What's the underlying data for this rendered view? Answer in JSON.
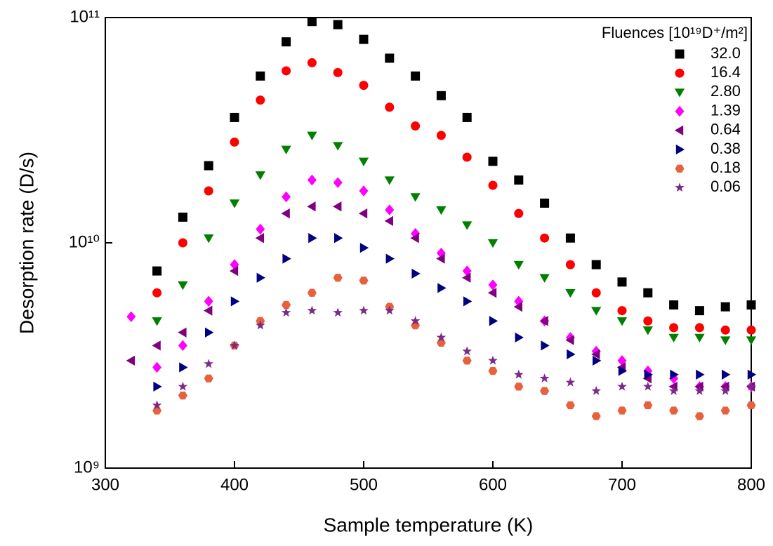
{
  "chart_data": {
    "type": "scatter",
    "xlabel": "Sample temperature (K)",
    "ylabel": "Desorption rate (D/s)",
    "legend_title": "Fluences [10¹⁹D⁺/m²]",
    "legend": "upper right",
    "log_y": true,
    "xlim": [
      300,
      800
    ],
    "xticks": [
      300,
      400,
      500,
      600,
      700,
      800
    ],
    "ylim": [
      1000000000.0,
      100000000000.0
    ],
    "yticks": [
      {
        "value": 1000000000.0,
        "label": "10⁹"
      },
      {
        "value": 10000000000.0,
        "label": "10¹⁰"
      },
      {
        "value": 100000000000.0,
        "label": "10¹¹"
      }
    ],
    "x": [
      320,
      340,
      360,
      380,
      400,
      420,
      440,
      460,
      480,
      500,
      520,
      540,
      560,
      580,
      600,
      620,
      640,
      660,
      680,
      700,
      720,
      740,
      760,
      780,
      800
    ],
    "series": [
      {
        "name": "32.0",
        "color": "#000000",
        "marker": "square",
        "values": [
          null,
          7500000000.0,
          13000000000.0,
          22000000000.0,
          36000000000.0,
          55000000000.0,
          78000000000.0,
          96000000000.0,
          93000000000.0,
          80000000000.0,
          66000000000.0,
          55000000000.0,
          45000000000.0,
          36000000000.0,
          23000000000.0,
          19000000000.0,
          15000000000.0,
          10500000000.0,
          8000000000.0,
          6700000000.0,
          6000000000.0,
          5300000000.0,
          5000000000.0,
          5200000000.0,
          5300000000.0
        ]
      },
      {
        "name": "16.4",
        "color": "#ff0000",
        "marker": "circle",
        "values": [
          null,
          6000000000.0,
          10000000000.0,
          17000000000.0,
          28000000000.0,
          43000000000.0,
          58000000000.0,
          63000000000.0,
          57000000000.0,
          50000000000.0,
          40000000000.0,
          33000000000.0,
          30000000000.0,
          24000000000.0,
          18000000000.0,
          13500000000.0,
          10500000000.0,
          8000000000.0,
          6000000000.0,
          5000000000.0,
          4500000000.0,
          4200000000.0,
          4200000000.0,
          4100000000.0,
          4100000000.0
        ]
      },
      {
        "name": "2.80",
        "color": "#008000",
        "marker": "triangle-down",
        "values": [
          null,
          4500000000.0,
          6500000000.0,
          10500000000.0,
          15000000000.0,
          20000000000.0,
          26000000000.0,
          30000000000.0,
          27000000000.0,
          23000000000.0,
          19000000000.0,
          16000000000.0,
          14000000000.0,
          12000000000.0,
          10000000000.0,
          8000000000.0,
          7000000000.0,
          6000000000.0,
          5000000000.0,
          4500000000.0,
          4100000000.0,
          3800000000.0,
          3800000000.0,
          3700000000.0,
          3700000000.0
        ]
      },
      {
        "name": "1.39",
        "color": "#ff00ff",
        "marker": "diamond",
        "values": [
          4700000000.0,
          2800000000.0,
          3500000000.0,
          5500000000.0,
          8000000000.0,
          11500000000.0,
          16000000000.0,
          19000000000.0,
          18500000000.0,
          17000000000.0,
          14000000000.0,
          11000000000.0,
          9000000000.0,
          7500000000.0,
          6500000000.0,
          5500000000.0,
          4500000000.0,
          3800000000.0,
          3300000000.0,
          3000000000.0,
          2700000000.0,
          2500000000.0,
          2300000000.0,
          2300000000.0,
          2300000000.0
        ]
      },
      {
        "name": "0.64",
        "color": "#800080",
        "marker": "triangle-left",
        "values": [
          3000000000.0,
          3500000000.0,
          4000000000.0,
          5000000000.0,
          7500000000.0,
          10500000000.0,
          13500000000.0,
          14500000000.0,
          14500000000.0,
          13500000000.0,
          12500000000.0,
          10500000000.0,
          8500000000.0,
          7000000000.0,
          6000000000.0,
          5200000000.0,
          4500000000.0,
          3700000000.0,
          3200000000.0,
          2800000000.0,
          2500000000.0,
          2300000000.0,
          2300000000.0,
          2300000000.0,
          2300000000.0
        ]
      },
      {
        "name": "0.38",
        "color": "#000080",
        "marker": "triangle-right",
        "values": [
          null,
          2300000000.0,
          2800000000.0,
          4000000000.0,
          5500000000.0,
          7000000000.0,
          8500000000.0,
          10500000000.0,
          10500000000.0,
          9500000000.0,
          8500000000.0,
          7300000000.0,
          6300000000.0,
          5500000000.0,
          4500000000.0,
          3800000000.0,
          3500000000.0,
          3200000000.0,
          3000000000.0,
          2700000000.0,
          2600000000.0,
          2600000000.0,
          2600000000.0,
          2600000000.0,
          2600000000.0
        ]
      },
      {
        "name": "0.18",
        "color": "#e8603c",
        "marker": "hexagon",
        "values": [
          null,
          1800000000.0,
          2100000000.0,
          2500000000.0,
          3500000000.0,
          4500000000.0,
          5300000000.0,
          6000000000.0,
          7000000000.0,
          6800000000.0,
          5200000000.0,
          4300000000.0,
          3600000000.0,
          3000000000.0,
          2700000000.0,
          2300000000.0,
          2200000000.0,
          1900000000.0,
          1700000000.0,
          1800000000.0,
          1900000000.0,
          1800000000.0,
          1700000000.0,
          1800000000.0,
          1900000000.0
        ]
      },
      {
        "name": "0.06",
        "color": "#7b2a8a",
        "marker": "star",
        "values": [
          null,
          1900000000.0,
          2300000000.0,
          2900000000.0,
          3500000000.0,
          4300000000.0,
          4900000000.0,
          5000000000.0,
          4900000000.0,
          5000000000.0,
          5000000000.0,
          4500000000.0,
          3800000000.0,
          3300000000.0,
          3000000000.0,
          2600000000.0,
          2500000000.0,
          2400000000.0,
          2200000000.0,
          2300000000.0,
          2300000000.0,
          2200000000.0,
          2200000000.0,
          2200000000.0,
          2300000000.0
        ]
      }
    ]
  }
}
